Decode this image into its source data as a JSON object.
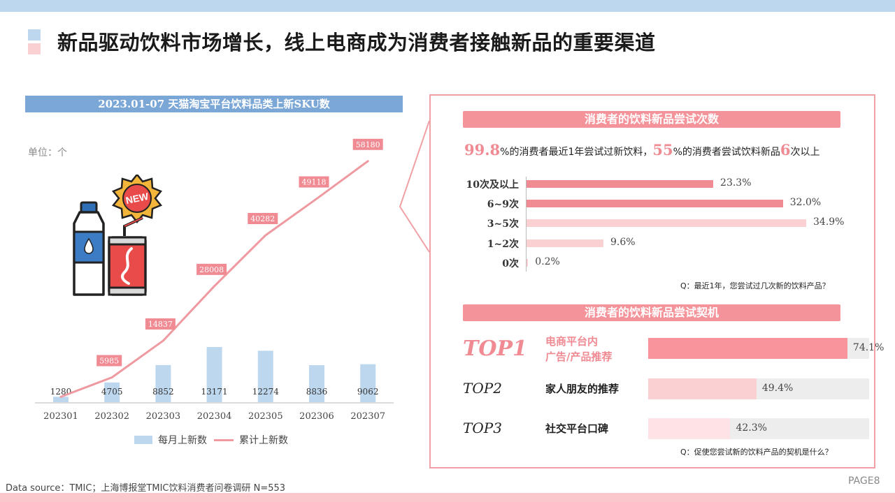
{
  "page_title": "新品驱动饮料市场增长，线上电商成为消费者接触新品的重要渠道",
  "left_panel": {
    "header": "2023.01-07 天猫淘宝平台饮料品类上新SKU数",
    "unit": "单位：个",
    "art_badge": "NEW"
  },
  "chart_data": {
    "type": "bar+line",
    "categories": [
      "202301",
      "202302",
      "202303",
      "202304",
      "202305",
      "202306",
      "202307"
    ],
    "series": [
      {
        "name": "每月上新数",
        "type": "bar",
        "values": [
          1280,
          4705,
          8852,
          13171,
          12274,
          8836,
          9062
        ],
        "color": "#bdd7ee"
      },
      {
        "name": "累计上新数",
        "type": "line",
        "values": [
          1280,
          5985,
          14837,
          28008,
          40282,
          49118,
          58180
        ],
        "color": "#ee9aa0"
      }
    ],
    "ylim": [
      0,
      60000
    ],
    "legend": "bottom",
    "grid": false
  },
  "right_panel": {
    "frequency": {
      "header": "消费者的饮料新品尝试次数",
      "stat": {
        "num1": "99.8",
        "text1": "%的消费者最近1年尝试过新饮料，",
        "num2": "55",
        "text2": "%的消费者尝试饮料新品",
        "num3": "6",
        "text3": "次以上"
      },
      "items": [
        {
          "label": "10次及以上",
          "value": 23.3,
          "display": "23.3%",
          "color": "#f08a93"
        },
        {
          "label": "6~9次",
          "value": 32.0,
          "display": "32.0%",
          "color": "#f08a93"
        },
        {
          "label": "3~5次",
          "value": 34.9,
          "display": "34.9%",
          "color": "#fbd0d3"
        },
        {
          "label": "1~2次",
          "value": 9.6,
          "display": "9.6%",
          "color": "#fbd0d3"
        },
        {
          "label": "0次",
          "value": 0.2,
          "display": "0.2%",
          "color": "#fbd0d3"
        }
      ],
      "note": "Q：最近1年，您尝试过几次新的饮料产品？"
    },
    "triggers": {
      "header": "消费者的饮料新品尝试契机",
      "items": [
        {
          "rank": "TOP1",
          "label": "电商平台内\n广告/产品推荐",
          "value": 74.1,
          "display": "74.1%",
          "color": "#f8949b"
        },
        {
          "rank": "TOP2",
          "label": "家人朋友的推荐",
          "value": 49.4,
          "display": "49.4%",
          "color": "#fbd0d3"
        },
        {
          "rank": "TOP3",
          "label": "社交平台口碑",
          "value": 42.3,
          "display": "42.3%",
          "color": "#fde3e5"
        }
      ],
      "note": "Q：促使您尝试新的饮料产品的契机是什么？"
    }
  },
  "footer": {
    "source": "Data source：TMIC；上海博报堂TMIC饮料消费者问卷调研 N=553",
    "page": "PAGE8"
  }
}
